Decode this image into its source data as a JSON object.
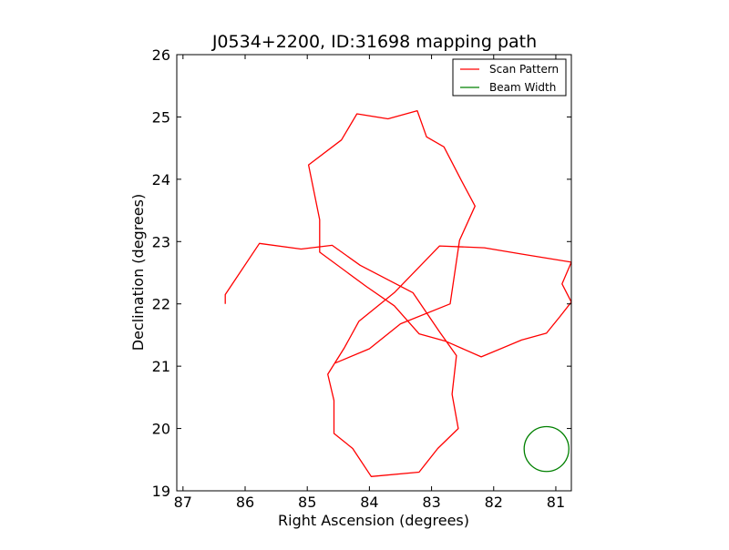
{
  "chart_data": {
    "type": "line",
    "title": "J0534+2200, ID:31698 mapping path",
    "xlabel": "Right Ascension (degrees)",
    "ylabel": "Declination (degrees)",
    "xlim": [
      87.1,
      80.75
    ],
    "ylim": [
      19,
      26
    ],
    "x_inverted": true,
    "xticks": [
      87,
      86,
      85,
      84,
      83,
      82,
      81
    ],
    "yticks": [
      19,
      20,
      21,
      22,
      23,
      24,
      25,
      26
    ],
    "grid": false,
    "legend_position": "upper right",
    "series": [
      {
        "name": "Scan Pattern",
        "color": "#ff0000",
        "points": [
          [
            86.32,
            22.0
          ],
          [
            86.32,
            22.15
          ],
          [
            85.77,
            22.97
          ],
          [
            85.1,
            22.88
          ],
          [
            84.6,
            22.94
          ],
          [
            84.15,
            22.62
          ],
          [
            83.3,
            22.18
          ],
          [
            82.87,
            21.55
          ],
          [
            82.6,
            21.17
          ],
          [
            82.67,
            20.55
          ],
          [
            82.57,
            20.0
          ],
          [
            82.9,
            19.68
          ],
          [
            83.2,
            19.3
          ],
          [
            83.97,
            19.23
          ],
          [
            84.27,
            19.68
          ],
          [
            84.57,
            19.92
          ],
          [
            84.57,
            20.45
          ],
          [
            84.67,
            20.87
          ],
          [
            84.4,
            21.3
          ],
          [
            84.17,
            21.72
          ],
          [
            83.6,
            22.18
          ],
          [
            82.87,
            22.93
          ],
          [
            82.15,
            22.9
          ],
          [
            81.55,
            22.8
          ],
          [
            80.75,
            22.67
          ],
          [
            80.9,
            22.32
          ],
          [
            80.75,
            22.03
          ],
          [
            80.93,
            21.8
          ],
          [
            81.15,
            21.53
          ],
          [
            81.55,
            21.42
          ],
          [
            82.2,
            21.15
          ],
          [
            82.77,
            21.4
          ],
          [
            83.2,
            21.52
          ],
          [
            83.6,
            21.97
          ],
          [
            84.05,
            22.28
          ],
          [
            84.8,
            22.83
          ],
          [
            84.8,
            23.35
          ],
          [
            84.98,
            24.23
          ],
          [
            84.45,
            24.63
          ],
          [
            84.2,
            25.05
          ],
          [
            83.7,
            24.97
          ],
          [
            83.23,
            25.1
          ],
          [
            83.08,
            24.68
          ],
          [
            82.8,
            24.52
          ],
          [
            82.52,
            23.98
          ],
          [
            82.3,
            23.57
          ],
          [
            82.55,
            23.02
          ],
          [
            82.7,
            22.0
          ],
          [
            83.5,
            21.68
          ],
          [
            84.0,
            21.28
          ],
          [
            84.55,
            21.05
          ]
        ]
      },
      {
        "name": "Beam Width",
        "color": "#008000",
        "shape": "circle",
        "center": [
          81.15,
          19.67
        ],
        "radius_deg": 0.36
      }
    ]
  }
}
